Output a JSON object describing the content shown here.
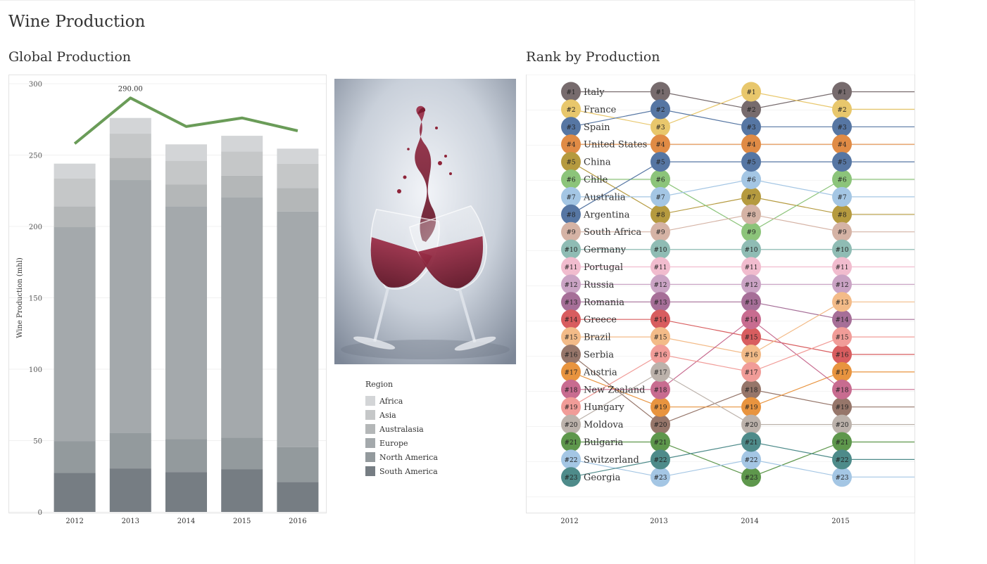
{
  "dashboard": {
    "title": "Wine Production",
    "left_title": "Global Production",
    "right_title": "Rank by Production"
  },
  "legend": {
    "title": "Region",
    "items": [
      {
        "label": "Africa",
        "color": "#d3d5d7"
      },
      {
        "label": "Asia",
        "color": "#c5c7c8"
      },
      {
        "label": "Australasia",
        "color": "#b4b7b8"
      },
      {
        "label": "Europe",
        "color": "#a4a9ac"
      },
      {
        "label": "North America",
        "color": "#939a9d"
      },
      {
        "label": "South America",
        "color": "#767d83"
      }
    ]
  },
  "chart_data": [
    {
      "type": "bar",
      "subtype": "stacked bar with line overlay",
      "title": "Global Production",
      "ylabel": "Wine Production (mhl)",
      "xlabel": "",
      "ylim": [
        0,
        300
      ],
      "yticks": [
        0,
        50,
        100,
        150,
        200,
        250,
        300
      ],
      "categories": [
        "2012",
        "2013",
        "2014",
        "2015",
        "2016"
      ],
      "series": [
        {
          "name": "South America",
          "color": "#767d83",
          "values": [
            27.5,
            30.5,
            28,
            30,
            21
          ]
        },
        {
          "name": "North America",
          "color": "#939a9d",
          "values": [
            22,
            25,
            23,
            22,
            24.5
          ]
        },
        {
          "name": "Europe",
          "color": "#a4a9ac",
          "values": [
            150,
            177,
            163,
            168.5,
            165
          ]
        },
        {
          "name": "Australasia",
          "color": "#b4b7b8",
          "values": [
            14.5,
            15.5,
            15.5,
            15,
            16.5
          ]
        },
        {
          "name": "Asia",
          "color": "#c5c7c8",
          "values": [
            19.5,
            17,
            16.5,
            17,
            17
          ]
        },
        {
          "name": "Africa",
          "color": "#d3d5d7",
          "values": [
            10.5,
            11,
            11.5,
            11,
            10.5
          ]
        }
      ],
      "line": {
        "color": "#6a9c58",
        "values": [
          258,
          290,
          270,
          276,
          267
        ]
      },
      "annotations": [
        {
          "category": "2013",
          "text": "290.00"
        }
      ],
      "grid": true
    },
    {
      "type": "line",
      "subtype": "bump chart",
      "title": "Rank by Production",
      "x": [
        "2012",
        "2013",
        "2014",
        "2015"
      ],
      "countries": [
        {
          "name": "Italy",
          "color": "#776b6d",
          "ranks": [
            1,
            1,
            2,
            1
          ]
        },
        {
          "name": "France",
          "color": "#e8c76c",
          "ranks": [
            2,
            3,
            1,
            2
          ]
        },
        {
          "name": "Spain",
          "color": "#5676a3",
          "ranks": [
            3,
            2,
            3,
            3
          ]
        },
        {
          "name": "United States",
          "color": "#e08b45",
          "ranks": [
            4,
            4,
            4,
            4
          ]
        },
        {
          "name": "China",
          "color": "#b59a3f",
          "ranks": [
            5,
            8,
            7,
            8
          ]
        },
        {
          "name": "Chile",
          "color": "#8cc47a",
          "ranks": [
            6,
            6,
            9,
            6
          ]
        },
        {
          "name": "Australia",
          "color": "#a4c6e4",
          "ranks": [
            7,
            7,
            6,
            7
          ]
        },
        {
          "name": "Argentina",
          "color": "#5676a3",
          "ranks": [
            8,
            5,
            5,
            5
          ]
        },
        {
          "name": "South Africa",
          "color": "#d5b3a5",
          "ranks": [
            9,
            9,
            8,
            9
          ]
        },
        {
          "name": "Germany",
          "color": "#8fbcb4",
          "ranks": [
            10,
            10,
            10,
            10
          ]
        },
        {
          "name": "Portugal",
          "color": "#f1bcce",
          "ranks": [
            11,
            11,
            11,
            11
          ]
        },
        {
          "name": "Russia",
          "color": "#caa3c4",
          "ranks": [
            12,
            12,
            12,
            12
          ]
        },
        {
          "name": "Romania",
          "color": "#a66f98",
          "ranks": [
            13,
            13,
            13,
            14
          ]
        },
        {
          "name": "Greece",
          "color": "#d85d5f",
          "ranks": [
            14,
            14,
            15,
            16
          ]
        },
        {
          "name": "Brazil",
          "color": "#f3bb88",
          "ranks": [
            15,
            15,
            16,
            13
          ]
        },
        {
          "name": "Serbia",
          "color": "#96766a",
          "ranks": [
            16,
            20,
            18,
            19
          ]
        },
        {
          "name": "Austria",
          "color": "#e8943f",
          "ranks": [
            17,
            19,
            19,
            17
          ]
        },
        {
          "name": "New Zealand",
          "color": "#c86c90",
          "ranks": [
            18,
            18,
            14,
            18
          ]
        },
        {
          "name": "Hungary",
          "color": "#f19c98",
          "ranks": [
            19,
            16,
            17,
            15
          ]
        },
        {
          "name": "Moldova",
          "color": "#bcb2ab",
          "ranks": [
            20,
            17,
            20,
            20
          ]
        },
        {
          "name": "Bulgaria",
          "color": "#5e974c",
          "ranks": [
            21,
            21,
            23,
            21
          ]
        },
        {
          "name": "Switzerland",
          "color": "#a4c6e4",
          "ranks": [
            22,
            23,
            22,
            23
          ]
        },
        {
          "name": "Georgia",
          "color": "#4e8b8a",
          "ranks": [
            23,
            22,
            21,
            22
          ]
        }
      ],
      "grid": true
    }
  ]
}
